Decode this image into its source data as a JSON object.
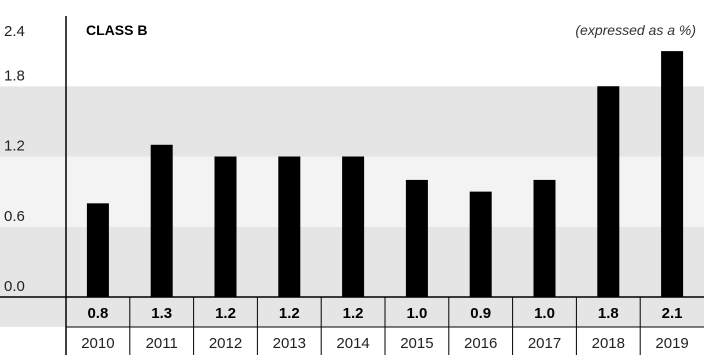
{
  "chart_data": {
    "type": "bar",
    "title": "CLASS B",
    "subtitle": "(expressed as a %)",
    "categories": [
      "2010",
      "2011",
      "2012",
      "2013",
      "2014",
      "2015",
      "2016",
      "2017",
      "2018",
      "2019"
    ],
    "values": [
      0.8,
      1.3,
      1.2,
      1.2,
      1.2,
      1.0,
      0.9,
      1.0,
      1.8,
      2.1
    ],
    "value_labels": [
      "0.8",
      "1.3",
      "1.2",
      "1.2",
      "1.2",
      "1.0",
      "0.9",
      "1.0",
      "1.8",
      "2.1"
    ],
    "y_ticks": [
      "0.0",
      "0.6",
      "1.2",
      "1.8",
      "2.4"
    ],
    "ylim": [
      0,
      2.4
    ],
    "xlabel": "",
    "ylabel": "",
    "grid": "alternating horizontal bands",
    "legend": "none",
    "colors": {
      "bar": "#000000",
      "band_dark": "#e5e5e5",
      "band_light": "#f3f3f3",
      "axis": "#000000",
      "text": "#222222"
    }
  }
}
